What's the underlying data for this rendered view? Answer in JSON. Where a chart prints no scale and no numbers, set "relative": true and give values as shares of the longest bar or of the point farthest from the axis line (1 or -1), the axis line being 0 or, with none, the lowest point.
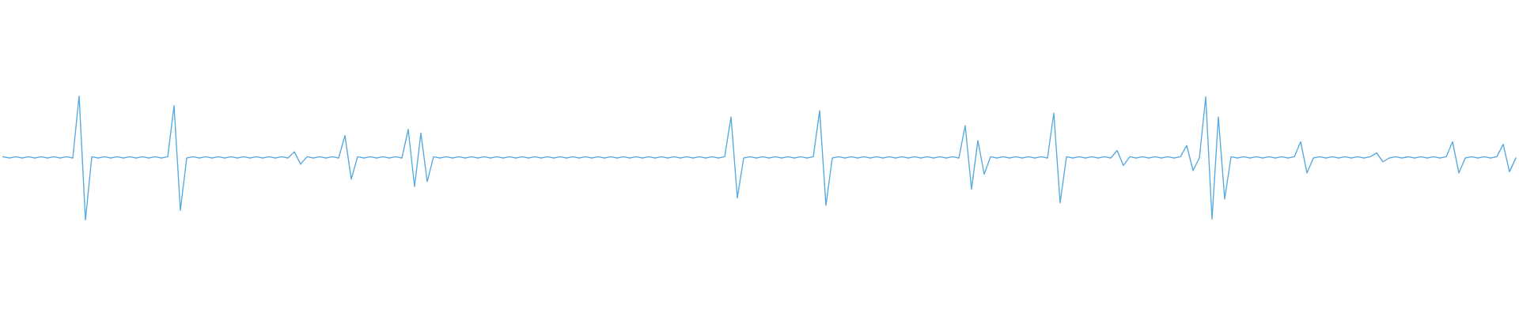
{
  "chart_data": {
    "type": "line",
    "relative": true,
    "legend": false,
    "marker": "none",
    "line_style": "solid",
    "tick_labels": false,
    "categories": [
      null,
      null,
      null,
      null,
      null,
      null,
      null,
      null,
      null,
      null,
      null,
      null,
      null,
      null,
      null,
      null,
      null,
      null,
      null,
      null,
      null,
      null,
      null,
      null,
      null,
      null,
      null,
      null,
      null,
      null,
      null,
      null,
      null,
      null,
      null,
      null,
      null,
      null,
      null,
      null,
      null,
      null,
      null,
      null,
      null,
      null,
      null,
      null,
      null,
      null,
      null,
      null,
      null,
      null,
      null,
      null,
      null,
      null,
      null,
      null,
      null,
      null,
      null,
      null,
      null,
      null,
      null,
      null,
      null,
      null,
      null,
      null,
      null,
      null,
      null,
      null,
      null,
      null,
      null,
      null,
      null,
      null,
      null,
      null,
      null,
      null,
      null,
      null,
      null,
      null,
      null,
      null,
      null,
      null,
      null,
      null,
      null,
      null,
      null,
      null,
      null,
      null,
      null,
      null,
      null,
      null,
      null,
      null,
      null,
      null,
      null,
      null,
      null,
      null,
      null,
      null,
      null,
      null,
      null,
      null,
      null,
      null,
      null,
      null,
      null,
      null,
      null,
      null,
      null,
      null,
      null,
      null,
      null,
      null,
      null,
      null,
      null,
      null,
      null,
      null,
      null,
      null,
      null,
      null,
      null,
      null,
      null,
      null,
      null,
      null,
      null,
      null,
      null,
      null,
      null,
      null,
      null,
      null,
      null,
      null,
      null,
      null,
      null,
      null,
      null,
      null,
      null,
      null,
      null,
      null,
      null,
      null,
      null,
      null,
      null,
      null,
      null,
      null,
      null,
      null,
      null,
      null,
      null,
      null,
      null,
      null,
      null,
      null,
      null,
      null,
      null,
      null,
      null,
      null,
      null,
      null,
      null,
      null,
      null,
      null,
      null,
      null,
      null,
      null,
      null,
      null,
      null,
      null,
      null,
      null,
      null,
      null,
      null,
      null,
      null,
      null,
      null,
      null,
      null,
      null,
      null,
      null,
      null,
      null,
      null,
      null,
      null,
      null,
      null,
      null,
      null,
      null,
      null,
      null,
      null,
      null,
      null,
      null,
      null,
      null
    ],
    "series": [
      {
        "color": "#5aaae0",
        "values": [
          0.51,
          0.5,
          0.51,
          0.5,
          0.51,
          0.5,
          0.51,
          0.5,
          0.51,
          0.5,
          0.51,
          0.5,
          1,
          0,
          0.51,
          0.5,
          0.51,
          0.5,
          0.51,
          0.5,
          0.51,
          0.5,
          0.51,
          0.5,
          0.51,
          0.5,
          0.51,
          0.92,
          0.08,
          0.5,
          0.51,
          0.5,
          0.51,
          0.5,
          0.51,
          0.5,
          0.51,
          0.5,
          0.51,
          0.5,
          0.51,
          0.5,
          0.51,
          0.5,
          0.51,
          0.5,
          0.55,
          0.45,
          0.51,
          0.5,
          0.51,
          0.5,
          0.51,
          0.5,
          0.68,
          0.33,
          0.51,
          0.5,
          0.51,
          0.5,
          0.51,
          0.5,
          0.51,
          0.5,
          0.73,
          0.27,
          0.7,
          0.31,
          0.51,
          0.5,
          0.51,
          0.5,
          0.51,
          0.5,
          0.51,
          0.5,
          0.51,
          0.5,
          0.51,
          0.5,
          0.51,
          0.5,
          0.51,
          0.5,
          0.51,
          0.5,
          0.51,
          0.5,
          0.51,
          0.5,
          0.51,
          0.5,
          0.51,
          0.5,
          0.51,
          0.5,
          0.51,
          0.5,
          0.51,
          0.5,
          0.51,
          0.5,
          0.51,
          0.5,
          0.51,
          0.5,
          0.51,
          0.5,
          0.51,
          0.5,
          0.51,
          0.5,
          0.51,
          0.5,
          0.51,
          0.83,
          0.18,
          0.5,
          0.51,
          0.5,
          0.51,
          0.5,
          0.51,
          0.5,
          0.51,
          0.5,
          0.51,
          0.5,
          0.51,
          0.88,
          0.12,
          0.5,
          0.51,
          0.5,
          0.51,
          0.5,
          0.51,
          0.5,
          0.51,
          0.5,
          0.51,
          0.5,
          0.51,
          0.5,
          0.51,
          0.5,
          0.51,
          0.5,
          0.51,
          0.5,
          0.51,
          0.5,
          0.76,
          0.25,
          0.64,
          0.37,
          0.51,
          0.5,
          0.51,
          0.5,
          0.51,
          0.5,
          0.51,
          0.5,
          0.51,
          0.5,
          0.86,
          0.14,
          0.51,
          0.5,
          0.51,
          0.5,
          0.51,
          0.5,
          0.51,
          0.5,
          0.56,
          0.44,
          0.51,
          0.5,
          0.51,
          0.5,
          0.51,
          0.5,
          0.51,
          0.5,
          0.51,
          0.6,
          0.4,
          0.5,
          0.99,
          0.01,
          0.83,
          0.17,
          0.51,
          0.5,
          0.51,
          0.5,
          0.51,
          0.5,
          0.51,
          0.5,
          0.51,
          0.5,
          0.51,
          0.63,
          0.38,
          0.5,
          0.51,
          0.5,
          0.51,
          0.5,
          0.51,
          0.5,
          0.51,
          0.5,
          0.51,
          0.54,
          0.47,
          0.5,
          0.51,
          0.5,
          0.51,
          0.5,
          0.51,
          0.5,
          0.51,
          0.5,
          0.51,
          0.63,
          0.38,
          0.5,
          0.51,
          0.5,
          0.51,
          0.5,
          0.51,
          0.61,
          0.39,
          0.5
        ]
      }
    ]
  }
}
